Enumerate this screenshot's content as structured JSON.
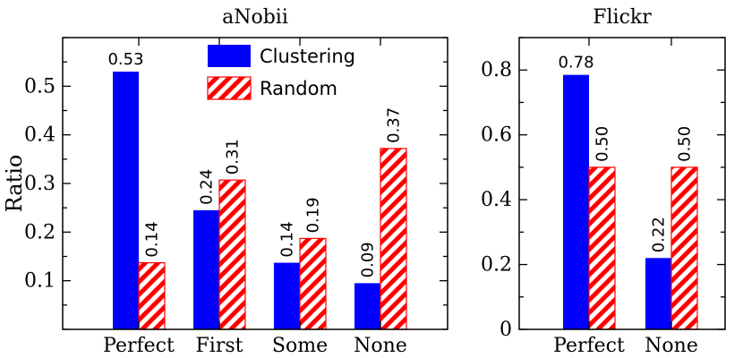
{
  "chart_data": [
    {
      "type": "bar",
      "title": "aNobii",
      "categories": [
        "Perfect",
        "First",
        "Some",
        "None"
      ],
      "ylabel": "Ratio",
      "xlabel": "",
      "ylim": [
        0,
        0.6
      ],
      "yticks": [
        0.1,
        0.2,
        0.3,
        0.4,
        0.5
      ],
      "ytick_labels": [
        "0.1",
        "0.2",
        "0.3",
        "0.4",
        "0.5"
      ],
      "series": [
        {
          "name": "Clustering",
          "values": [
            0.53,
            0.245,
            0.137,
            0.095
          ],
          "labels": [
            "0.53",
            "0.24",
            "0.14",
            "0.09"
          ],
          "color": "#0000ff",
          "pattern": "solid"
        },
        {
          "name": "Random",
          "values": [
            0.137,
            0.307,
            0.187,
            0.372
          ],
          "labels": [
            "0.14",
            "0.31",
            "0.19",
            "0.37"
          ],
          "color": "#ff0000",
          "pattern": "hatched"
        }
      ],
      "legend": {
        "position": "top-right",
        "entries": [
          "Clustering",
          "Random"
        ]
      }
    },
    {
      "type": "bar",
      "title": "Flickr",
      "categories": [
        "Perfect",
        "None"
      ],
      "ylabel": "",
      "xlabel": "",
      "ylim": [
        0,
        0.9
      ],
      "yticks": [
        0,
        0.2,
        0.4,
        0.6,
        0.8
      ],
      "ytick_labels": [
        "0",
        "0.2",
        "0.4",
        "0.6",
        "0.8"
      ],
      "series": [
        {
          "name": "Clustering",
          "values": [
            0.785,
            0.22
          ],
          "labels": [
            "0.78",
            "0.22"
          ],
          "color": "#0000ff",
          "pattern": "solid"
        },
        {
          "name": "Random",
          "values": [
            0.5,
            0.5
          ],
          "labels": [
            "0.50",
            "0.50"
          ],
          "color": "#ff0000",
          "pattern": "hatched"
        }
      ]
    }
  ]
}
